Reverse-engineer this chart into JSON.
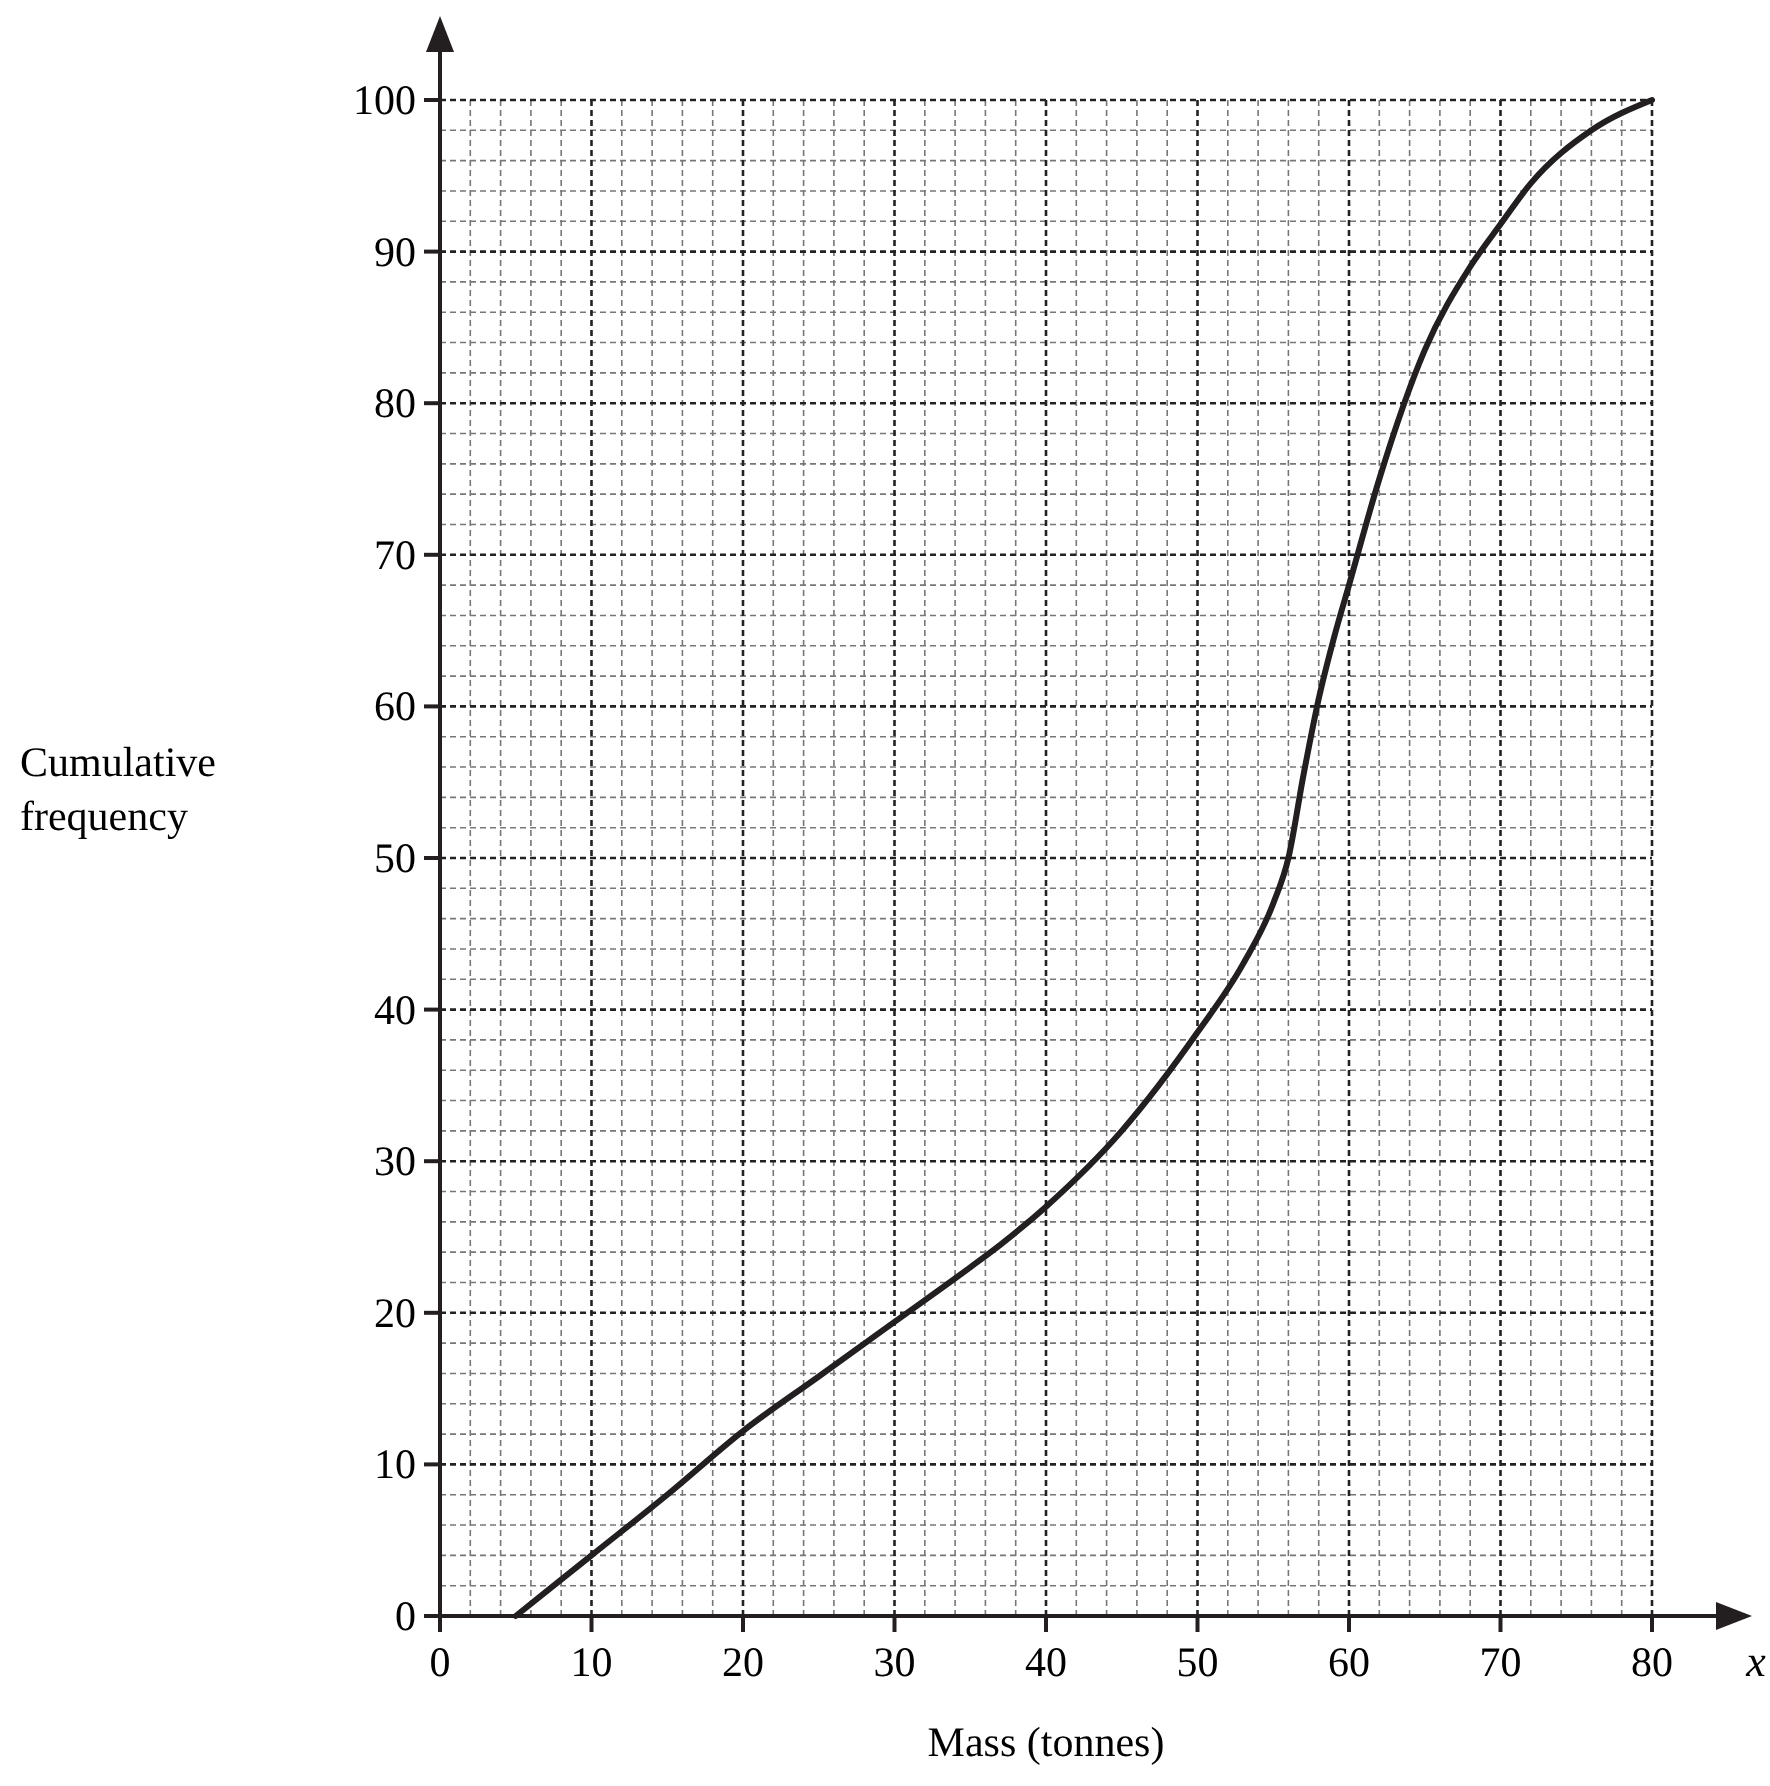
{
  "chart_data": {
    "type": "line",
    "xlabel": "Mass (tonnes)",
    "ylabel": "Cumulative frequency",
    "annotations": [
      "x"
    ],
    "x": [
      5,
      10,
      15,
      20,
      25,
      30,
      35,
      37,
      40,
      45,
      50,
      53,
      55,
      56,
      57,
      58,
      59,
      60,
      62,
      65,
      68,
      70,
      72,
      76,
      80
    ],
    "series": [
      {
        "color": "#231f20",
        "values": [
          0,
          4,
          8,
          12.2,
          15.8,
          19.4,
          23,
          24.5,
          27,
          32,
          38.5,
          43,
          47,
          50,
          55.5,
          60.5,
          64.5,
          68,
          75,
          83.5,
          89,
          91.8,
          94.5,
          98,
          100
        ]
      }
    ],
    "xlim": [
      0,
      80
    ],
    "ylim": [
      0,
      100
    ],
    "xticks": [
      0,
      10,
      20,
      30,
      40,
      50,
      60,
      70,
      80
    ],
    "yticks": [
      0,
      10,
      20,
      30,
      40,
      50,
      60,
      70,
      80,
      90,
      100
    ],
    "grid": true,
    "marker": "none",
    "line_style": "solid"
  }
}
